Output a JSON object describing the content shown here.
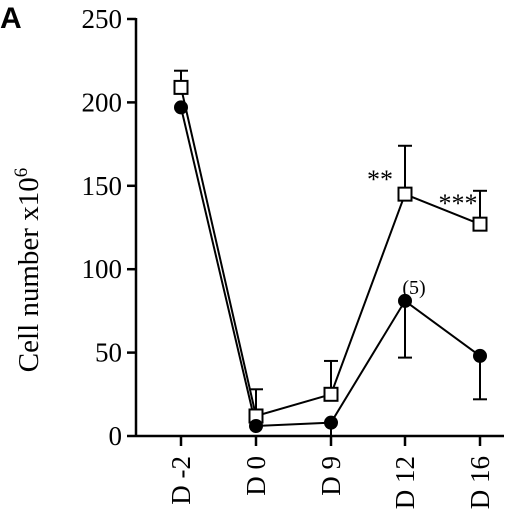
{
  "chart_data": {
    "type": "line",
    "panel_label": "A",
    "ylabel": "Cell number x10",
    "ylabel_exponent": "6",
    "xlabel": "",
    "categories": [
      "D -2",
      "D 0",
      "D 9",
      "D 12",
      "D 16"
    ],
    "ylim": [
      0,
      250
    ],
    "yticks": [
      0,
      50,
      100,
      150,
      200,
      250
    ],
    "ytick_labels": [
      "0",
      "50",
      "100",
      "150",
      "200",
      "250"
    ],
    "grid": false,
    "series": [
      {
        "marker": "open-square",
        "values": [
          209,
          12,
          25,
          145,
          127
        ],
        "errors": [
          10,
          16,
          20,
          29,
          20
        ]
      },
      {
        "marker": "filled-circle",
        "values": [
          197,
          6,
          8,
          81,
          48
        ],
        "errors": [
          0,
          0,
          8,
          34,
          26
        ]
      }
    ],
    "annotations": [
      {
        "text": "**",
        "category": "D 12"
      },
      {
        "text": "***",
        "category": "D 16"
      },
      {
        "text": "(5)",
        "category": "D 12"
      }
    ]
  }
}
